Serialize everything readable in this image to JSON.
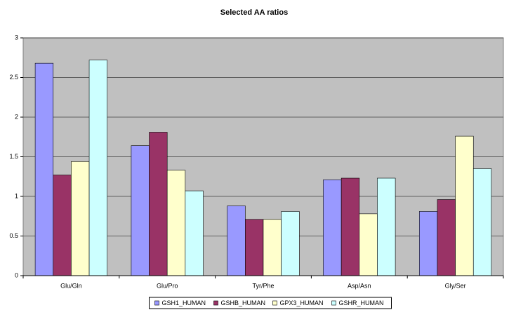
{
  "chart_data": {
    "type": "bar",
    "title": "Selected AA ratios",
    "categories": [
      "Glu/Gln",
      "Glu/Pro",
      "Tyr/Phe",
      "Asp/Asn",
      "Gly/Ser"
    ],
    "series": [
      {
        "name": "GSH1_HUMAN",
        "color": "#9999ff",
        "values": [
          2.68,
          1.64,
          0.88,
          1.21,
          0.81
        ]
      },
      {
        "name": "GSHB_HUMAN",
        "color": "#993366",
        "values": [
          1.27,
          1.81,
          0.71,
          1.23,
          0.96
        ]
      },
      {
        "name": "GPX3_HUMAN",
        "color": "#ffffcc",
        "values": [
          1.44,
          1.33,
          0.71,
          0.78,
          1.76
        ]
      },
      {
        "name": "GSHR_HUMAN",
        "color": "#ccffff",
        "values": [
          2.72,
          1.07,
          0.81,
          1.23,
          1.35
        ]
      }
    ],
    "ylim": [
      0,
      3
    ],
    "yticks": [
      0,
      0.5,
      1,
      1.5,
      2,
      2.5,
      3
    ],
    "grid": true,
    "legend": "bottom"
  }
}
